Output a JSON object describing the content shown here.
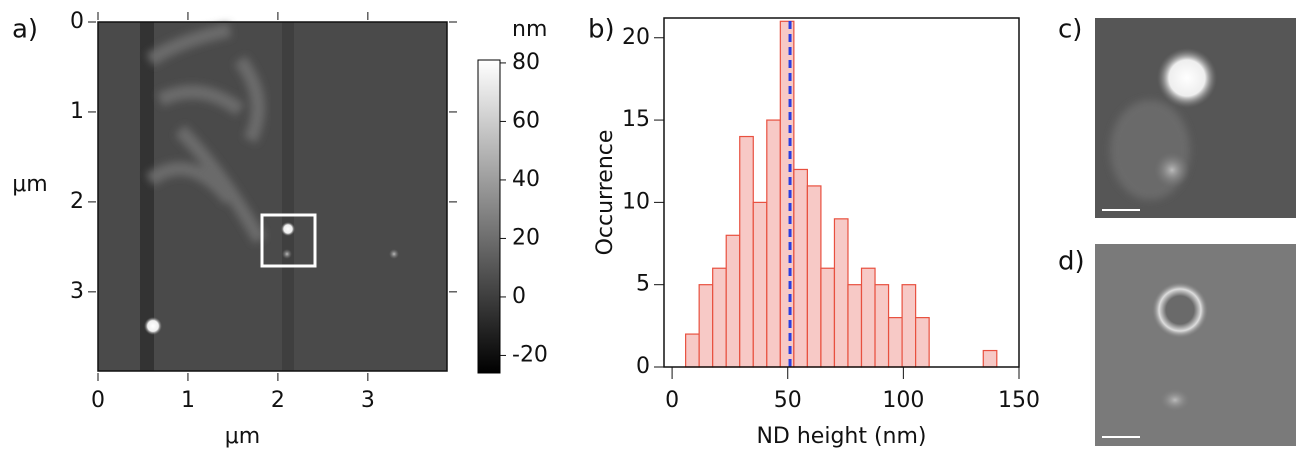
{
  "chart_data": [
    {
      "type": "heatmap",
      "label": "a)",
      "xlabel": "μm",
      "ylabel": "μm",
      "xlim": [
        0,
        3.88
      ],
      "xticks": [
        0,
        1,
        2,
        3
      ],
      "ylim": [
        0,
        3.88
      ],
      "yticks": [
        0,
        1,
        2,
        3
      ],
      "colorbar": {
        "label": "nm",
        "lim": [
          -26,
          81
        ],
        "ticks": [
          80,
          60,
          40,
          20,
          0,
          -20
        ]
      }
    },
    {
      "type": "histogram",
      "label": "b)",
      "xlabel": "ND height (nm)",
      "ylabel": "Occurrence",
      "bins": [
        0,
        5.85,
        11.7,
        17.55,
        23.4,
        29.25,
        35.1,
        40.95,
        46.8,
        52.65,
        58.5,
        64.35,
        70.2,
        76.05,
        81.9,
        87.75,
        93.6,
        99.45,
        105.3,
        111.15,
        117,
        122.85,
        128.7,
        134.55,
        140.4,
        146.25
      ],
      "counts": [
        0,
        2,
        5,
        6,
        8,
        14,
        10,
        15,
        21,
        12,
        11,
        6,
        9,
        5,
        6,
        5,
        3,
        5,
        3,
        0,
        0,
        0,
        0,
        1,
        0
      ],
      "color": "#f7c9c6",
      "edgecolor": "#e8503f",
      "mean_line": 51,
      "mean_color": "#2a3ee0",
      "xlim": [
        -3.5,
        150
      ],
      "xticks": [
        0,
        50,
        100,
        150
      ],
      "ylim": [
        0,
        21.2
      ],
      "yticks": [
        0,
        5,
        10,
        15,
        20
      ]
    },
    {
      "type": "image",
      "label": "c)"
    },
    {
      "type": "image",
      "label": "d)"
    }
  ]
}
